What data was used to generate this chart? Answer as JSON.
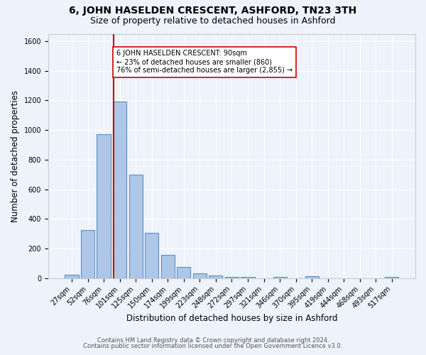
{
  "title": "6, JOHN HASELDEN CRESCENT, ASHFORD, TN23 3TH",
  "subtitle": "Size of property relative to detached houses in Ashford",
  "xlabel": "Distribution of detached houses by size in Ashford",
  "ylabel": "Number of detached properties",
  "footnote1": "Contains HM Land Registry data © Crown copyright and database right 2024.",
  "footnote2": "Contains public sector information licensed under the Open Government Licence v3.0.",
  "categories": [
    "27sqm",
    "52sqm",
    "76sqm",
    "101sqm",
    "125sqm",
    "150sqm",
    "174sqm",
    "199sqm",
    "223sqm",
    "248sqm",
    "272sqm",
    "297sqm",
    "321sqm",
    "346sqm",
    "370sqm",
    "395sqm",
    "419sqm",
    "444sqm",
    "468sqm",
    "493sqm",
    "517sqm"
  ],
  "values": [
    25,
    325,
    970,
    1190,
    700,
    305,
    155,
    75,
    30,
    20,
    10,
    10,
    0,
    10,
    0,
    15,
    0,
    0,
    0,
    0,
    10
  ],
  "bar_color": "#aec6e8",
  "bar_edge_color": "#5a8fc2",
  "background_color": "#eef2fb",
  "grid_color": "#ffffff",
  "ylim": [
    0,
    1650
  ],
  "yticks": [
    0,
    200,
    400,
    600,
    800,
    1000,
    1200,
    1400,
    1600
  ],
  "property_line_x": 2.62,
  "property_line_color": "#cc0000",
  "annotation_text": "6 JOHN HASELDEN CRESCENT: 90sqm\n← 23% of detached houses are smaller (860)\n76% of semi-detached houses are larger (2,855) →",
  "annotation_box_color": "#ffffff",
  "annotation_box_edge_color": "#cc0000",
  "title_fontsize": 10,
  "subtitle_fontsize": 9,
  "axis_label_fontsize": 8.5,
  "tick_fontsize": 7,
  "annotation_fontsize": 7,
  "footnote_fontsize": 6
}
